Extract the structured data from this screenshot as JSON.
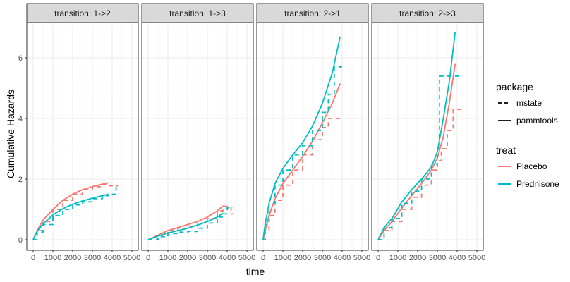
{
  "chart_data": {
    "type": "line",
    "xlabel": "time",
    "ylabel": "Cumulative Hazards",
    "xlim": [
      0,
      5000
    ],
    "ylim": [
      0,
      7
    ],
    "x_ticks": [
      0,
      1000,
      2000,
      3000,
      4000,
      5000
    ],
    "x_tick_labels": [
      "0",
      "1000",
      "2000",
      "3000",
      "4000",
      "5000"
    ],
    "y_ticks": [
      0,
      2,
      4,
      6
    ],
    "y_tick_labels": [
      "0",
      "2",
      "4",
      "6"
    ],
    "grid": true,
    "legend_placement": "right",
    "legends": [
      {
        "title": "package",
        "entries": [
          {
            "label": "mstate",
            "linetype": "dashed"
          },
          {
            "label": "pammtools",
            "linetype": "solid"
          }
        ]
      },
      {
        "title": "treat",
        "entries": [
          {
            "label": "Placebo",
            "color": "#F8766D"
          },
          {
            "label": "Prednisone",
            "color": "#00BFC4"
          }
        ]
      }
    ],
    "colors": {
      "Placebo": "#F8766D",
      "Prednisone": "#00BFC4"
    },
    "panels": [
      {
        "title": "transition: 1->2",
        "series": [
          {
            "treat": "Placebo",
            "package": "mstate",
            "step": true,
            "x": [
              0,
              200,
              500,
              1000,
              1500,
              2000,
              2500,
              3000,
              3500,
              3800,
              4300
            ],
            "y": [
              0,
              0.3,
              0.6,
              1.0,
              1.3,
              1.5,
              1.65,
              1.75,
              1.82,
              1.78,
              1.78
            ]
          },
          {
            "treat": "Placebo",
            "package": "pammtools",
            "step": false,
            "x": [
              0,
              200,
              500,
              1000,
              1500,
              2000,
              2500,
              3000,
              3500,
              3800
            ],
            "y": [
              0,
              0.3,
              0.65,
              1.0,
              1.3,
              1.5,
              1.65,
              1.75,
              1.83,
              1.88
            ]
          },
          {
            "treat": "Prednisone",
            "package": "mstate",
            "step": true,
            "x": [
              0,
              200,
              500,
              1000,
              1500,
              2000,
              2500,
              3000,
              3500,
              3800,
              4200
            ],
            "y": [
              0,
              0.25,
              0.5,
              0.8,
              1.0,
              1.15,
              1.25,
              1.35,
              1.45,
              1.5,
              1.78
            ]
          },
          {
            "treat": "Prednisone",
            "package": "pammtools",
            "step": false,
            "x": [
              0,
              200,
              500,
              1000,
              1500,
              2000,
              2500,
              3000,
              3500,
              3800
            ],
            "y": [
              0,
              0.27,
              0.52,
              0.82,
              1.02,
              1.17,
              1.28,
              1.37,
              1.45,
              1.5
            ]
          }
        ]
      },
      {
        "title": "transition: 1->3",
        "series": [
          {
            "treat": "Placebo",
            "package": "mstate",
            "step": true,
            "x": [
              0,
              500,
              1000,
              1500,
              2000,
              2500,
              3000,
              3500,
              3800,
              4200,
              4300
            ],
            "y": [
              0,
              0.15,
              0.3,
              0.38,
              0.45,
              0.55,
              0.7,
              0.95,
              1.1,
              0.85,
              0.85
            ]
          },
          {
            "treat": "Placebo",
            "package": "pammtools",
            "step": false,
            "x": [
              0,
              500,
              1000,
              1500,
              2000,
              2500,
              3000,
              3500,
              3800
            ],
            "y": [
              0,
              0.15,
              0.3,
              0.4,
              0.5,
              0.6,
              0.75,
              0.95,
              1.12
            ]
          },
          {
            "treat": "Prednisone",
            "package": "mstate",
            "step": true,
            "x": [
              0,
              500,
              1000,
              1500,
              2000,
              2500,
              3000,
              3500,
              3800,
              4000,
              4300
            ],
            "y": [
              0,
              0.1,
              0.2,
              0.25,
              0.27,
              0.38,
              0.55,
              0.75,
              0.85,
              1.05,
              1.05
            ]
          },
          {
            "treat": "Prednisone",
            "package": "pammtools",
            "step": false,
            "x": [
              0,
              500,
              1000,
              1500,
              2000,
              2500,
              3000,
              3500,
              3800
            ],
            "y": [
              0,
              0.12,
              0.22,
              0.3,
              0.38,
              0.48,
              0.6,
              0.75,
              0.88
            ]
          }
        ]
      },
      {
        "title": "transition: 2->1",
        "series": [
          {
            "treat": "Placebo",
            "package": "mstate",
            "step": true,
            "x": [
              0,
              100,
              300,
              600,
              1000,
              1500,
              2000,
              2500,
              3000,
              3300,
              3900
            ],
            "y": [
              0,
              0.3,
              0.8,
              1.3,
              1.8,
              2.3,
              2.8,
              3.3,
              3.7,
              4.0,
              4.0
            ]
          },
          {
            "treat": "Placebo",
            "package": "pammtools",
            "step": false,
            "x": [
              0,
              100,
              300,
              600,
              1000,
              1500,
              2000,
              2500,
              3000,
              3500,
              3900
            ],
            "y": [
              0,
              0.3,
              0.8,
              1.35,
              1.85,
              2.3,
              2.75,
              3.25,
              3.85,
              4.5,
              5.15
            ]
          },
          {
            "treat": "Prednisone",
            "package": "mstate",
            "step": true,
            "x": [
              0,
              100,
              300,
              600,
              1000,
              1500,
              2000,
              2500,
              3000,
              3300,
              3600,
              4000
            ],
            "y": [
              0,
              0.5,
              1.2,
              1.8,
              2.3,
              2.8,
              3.1,
              3.6,
              4.2,
              4.8,
              5.7,
              5.7
            ]
          },
          {
            "treat": "Prednisone",
            "package": "pammtools",
            "step": false,
            "x": [
              0,
              100,
              300,
              600,
              1000,
              1500,
              2000,
              2500,
              3000,
              3500,
              3900
            ],
            "y": [
              0,
              0.5,
              1.2,
              1.85,
              2.35,
              2.8,
              3.2,
              3.75,
              4.5,
              5.5,
              6.7
            ]
          }
        ]
      },
      {
        "title": "transition: 2->3",
        "series": [
          {
            "treat": "Placebo",
            "package": "mstate",
            "step": true,
            "x": [
              0,
              300,
              700,
              1200,
              1700,
              2200,
              2700,
              3000,
              3200,
              3500,
              3800,
              4400
            ],
            "y": [
              0,
              0.3,
              0.6,
              1.0,
              1.4,
              1.8,
              2.3,
              2.6,
              3.0,
              3.6,
              4.3,
              4.3
            ]
          },
          {
            "treat": "Placebo",
            "package": "pammtools",
            "step": false,
            "x": [
              0,
              300,
              700,
              1200,
              1700,
              2200,
              2700,
              3000,
              3300,
              3600,
              3900
            ],
            "y": [
              0,
              0.3,
              0.6,
              1.05,
              1.45,
              1.85,
              2.3,
              2.7,
              3.4,
              4.5,
              5.8
            ]
          },
          {
            "treat": "Prednisone",
            "package": "mstate",
            "step": true,
            "x": [
              0,
              300,
              700,
              1200,
              1700,
              2200,
              2700,
              3000,
              3100,
              3300,
              3600,
              4300
            ],
            "y": [
              0,
              0.4,
              0.7,
              1.2,
              1.6,
              2.0,
              2.5,
              3.0,
              5.4,
              5.4,
              5.4,
              5.4
            ]
          },
          {
            "treat": "Prednisone",
            "package": "pammtools",
            "step": false,
            "x": [
              0,
              300,
              700,
              1200,
              1700,
              2200,
              2700,
              3000,
              3300,
              3600,
              3900
            ],
            "y": [
              0,
              0.4,
              0.7,
              1.25,
              1.65,
              2.0,
              2.4,
              2.9,
              4.0,
              5.2,
              6.85
            ]
          }
        ]
      }
    ]
  }
}
